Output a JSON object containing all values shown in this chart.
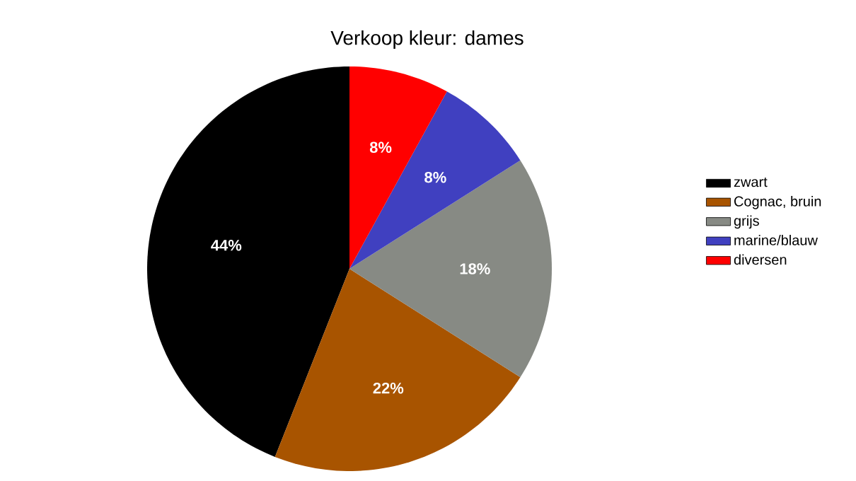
{
  "chart_data": {
    "type": "pie",
    "title": "Verkoop kleur: dames",
    "categories": [
      "zwart",
      "Cognac, bruin",
      "grijs",
      "marine/blauw",
      "diversen"
    ],
    "values": [
      44,
      22,
      18,
      8,
      8
    ],
    "colors": [
      "#000000",
      "#a85400",
      "#878a84",
      "#4040c0",
      "#ff0000"
    ],
    "value_labels": [
      "44%",
      "22%",
      "18%",
      "8%",
      "8%"
    ],
    "legend": "right"
  }
}
